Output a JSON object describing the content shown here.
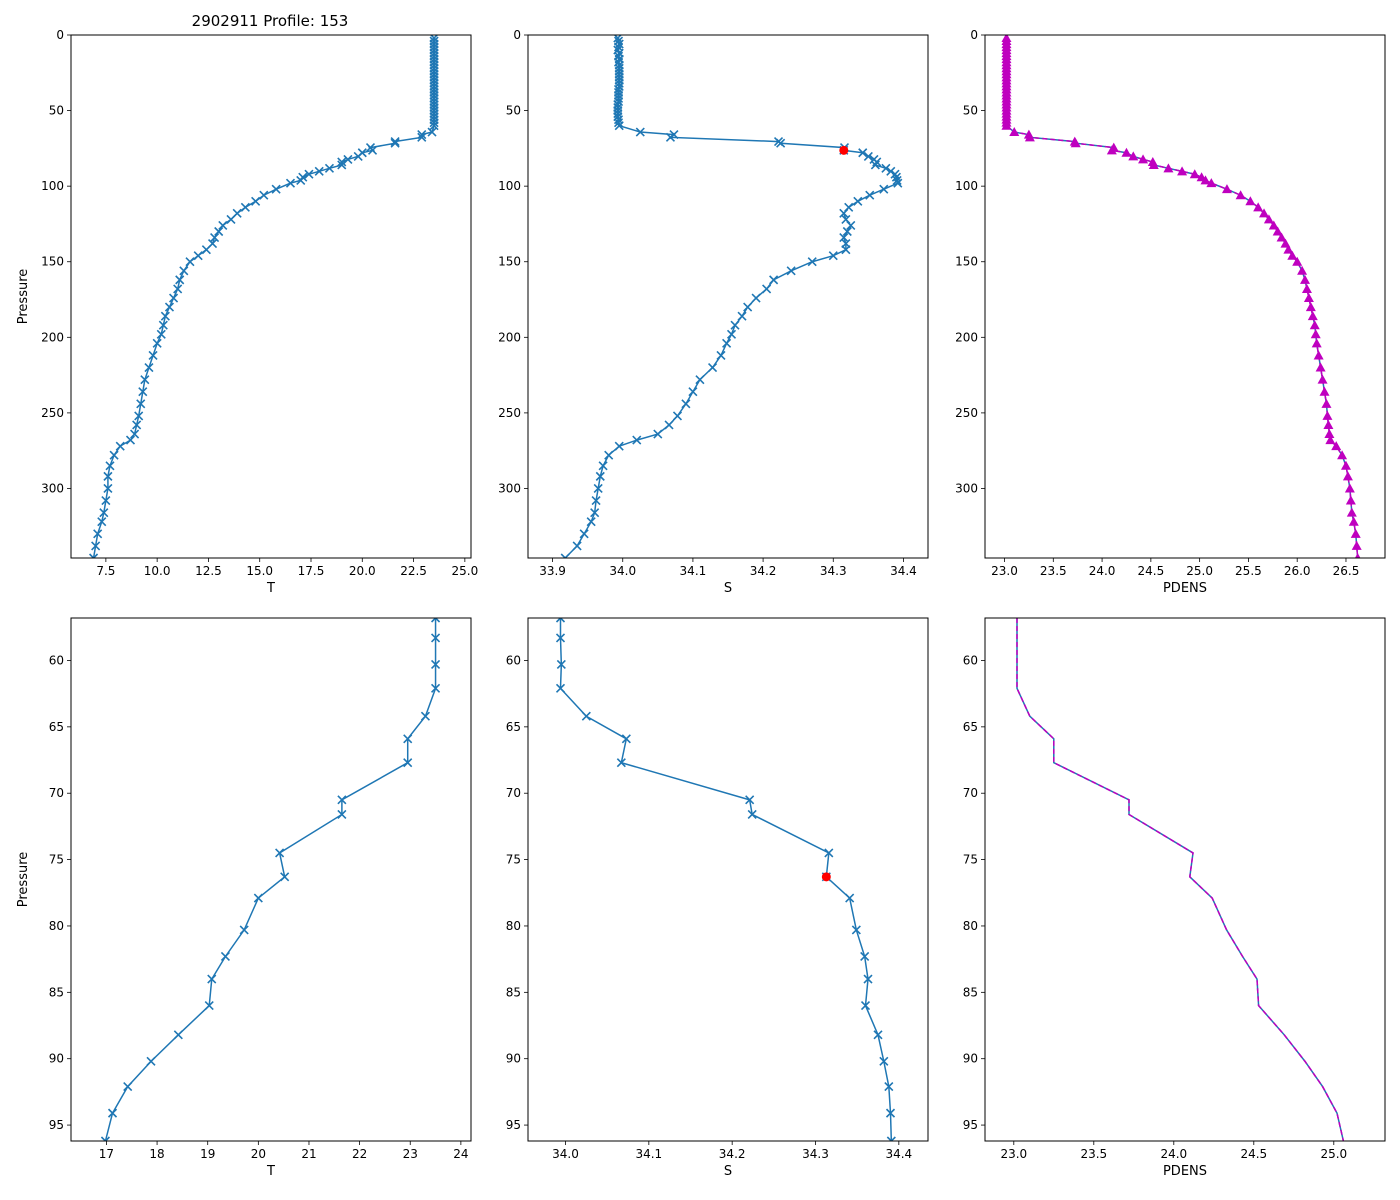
{
  "figure_title": "2902911 Profile: 153",
  "colors": {
    "temp": "#1f77b4",
    "sal": "#1f77b4",
    "dens": "#bf00bf",
    "flag": "#ff0000",
    "axis": "#000000"
  },
  "chart_data": [
    {
      "type": "line",
      "panel": "top-left",
      "title": "2902911 Profile: 153",
      "xlabel": "T",
      "ylabel": "Pressure",
      "xlim": [
        5.8,
        25.3
      ],
      "ylim": [
        346,
        0
      ],
      "xticks": [
        "7.5",
        "10.0",
        "12.5",
        "15.0",
        "17.5",
        "20.0",
        "22.5",
        "25.0"
      ],
      "yticks": [
        "0",
        "50",
        "100",
        "150",
        "200",
        "250",
        "300"
      ],
      "marker": "x",
      "series": [
        {
          "name": "T",
          "x": [
            23.5,
            23.5,
            23.5,
            23.5,
            23.5,
            23.5,
            23.5,
            23.5,
            23.5,
            23.5,
            23.5,
            23.5,
            23.5,
            23.5,
            23.5,
            23.5,
            23.5,
            23.5,
            23.5,
            23.5,
            23.5,
            23.5,
            23.5,
            23.5,
            23.5,
            23.5,
            23.5,
            23.5,
            23.5,
            23.5,
            23.4,
            22.9,
            22.9,
            21.6,
            21.6,
            20.4,
            20.5,
            20.0,
            19.8,
            19.3,
            19.0,
            19.0,
            18.4,
            17.9,
            17.4,
            17.1,
            17.0,
            16.5,
            15.8,
            15.2,
            14.8,
            14.3,
            13.9,
            13.6,
            13.2,
            13.0,
            12.8,
            12.7,
            12.4,
            12.0,
            11.6,
            11.3,
            11.1,
            11.0,
            10.8,
            10.6,
            10.4,
            10.3,
            10.2,
            10.0,
            9.8,
            9.6,
            9.4,
            9.3,
            9.2,
            9.1,
            9.0,
            8.9,
            8.7,
            8.2,
            7.9,
            7.7,
            7.6,
            7.6,
            7.5,
            7.4,
            7.3,
            7.1,
            7.0,
            6.9
          ],
          "y": [
            2,
            4,
            6,
            8,
            10,
            12,
            14,
            16,
            18,
            20,
            22,
            24,
            26,
            28,
            30,
            32,
            34,
            36,
            38,
            40,
            42,
            44,
            46,
            48,
            50,
            52,
            54,
            56,
            58,
            60,
            64.2,
            65.9,
            67.7,
            70.5,
            71.6,
            74.5,
            76.3,
            77.9,
            80.3,
            82.3,
            84.0,
            86.0,
            88.2,
            90.2,
            92.1,
            94.1,
            96.2,
            98,
            102,
            106,
            110,
            114,
            118,
            122,
            126,
            130,
            134,
            138,
            142,
            146,
            150,
            156,
            162,
            168,
            174,
            180,
            186,
            192,
            198,
            204,
            212,
            220,
            228,
            236,
            244,
            252,
            258,
            264,
            268,
            272,
            278,
            285,
            292,
            300,
            308,
            316,
            322,
            330,
            338,
            346
          ]
        }
      ]
    },
    {
      "type": "line",
      "panel": "top-middle",
      "xlabel": "S",
      "xlim": [
        33.865,
        34.435
      ],
      "ylim": [
        346,
        0
      ],
      "xticks": [
        "33.9",
        "34.0",
        "34.1",
        "34.2",
        "34.3",
        "34.4"
      ],
      "yticks": [
        "0",
        "50",
        "100",
        "150",
        "200",
        "250",
        "300"
      ],
      "marker": "x",
      "flagged_point": {
        "x": 34.315,
        "y": 76.3
      },
      "series": [
        {
          "name": "S",
          "x": [
            33.993,
            33.994,
            33.995,
            33.994,
            33.993,
            33.995,
            33.994,
            33.995,
            33.994,
            33.995,
            33.995,
            33.995,
            33.995,
            33.995,
            33.995,
            33.995,
            33.995,
            33.994,
            33.994,
            33.994,
            33.994,
            33.994,
            33.993,
            33.993,
            33.993,
            33.993,
            33.993,
            33.994,
            33.994,
            33.995,
            34.025,
            34.073,
            34.068,
            34.222,
            34.225,
            34.316,
            34.315,
            34.342,
            34.35,
            34.358,
            34.362,
            34.36,
            34.375,
            34.382,
            34.388,
            34.39,
            34.391,
            34.392,
            34.372,
            34.352,
            34.335,
            34.322,
            34.315,
            34.318,
            34.325,
            34.32,
            34.315,
            34.318,
            34.318,
            34.3,
            34.27,
            34.24,
            34.215,
            34.205,
            34.19,
            34.178,
            34.17,
            34.16,
            34.155,
            34.148,
            34.14,
            34.128,
            34.11,
            34.1,
            34.09,
            34.078,
            34.066,
            34.05,
            34.02,
            33.995,
            33.98,
            33.972,
            33.968,
            33.965,
            33.962,
            33.96,
            33.955,
            33.945,
            33.935,
            33.918
          ],
          "y": [
            2,
            4,
            6,
            8,
            10,
            12,
            14,
            16,
            18,
            20,
            22,
            24,
            26,
            28,
            30,
            32,
            34,
            36,
            38,
            40,
            42,
            44,
            46,
            48,
            50,
            52,
            54,
            56,
            58,
            60,
            64.2,
            65.9,
            67.7,
            70.5,
            71.6,
            74.5,
            76.3,
            77.9,
            80.3,
            82.3,
            84.0,
            86.0,
            88.2,
            90.2,
            92.1,
            94.1,
            96.2,
            98,
            102,
            106,
            110,
            114,
            118,
            122,
            126,
            130,
            134,
            138,
            142,
            146,
            150,
            156,
            162,
            168,
            174,
            180,
            186,
            192,
            198,
            204,
            212,
            220,
            228,
            236,
            244,
            252,
            258,
            264,
            268,
            272,
            278,
            285,
            292,
            300,
            308,
            316,
            322,
            330,
            338,
            346
          ]
        }
      ]
    },
    {
      "type": "line",
      "panel": "top-right",
      "xlabel": "PDENS",
      "xlim": [
        22.8,
        26.9
      ],
      "ylim": [
        346,
        0
      ],
      "xticks": [
        "23.0",
        "23.5",
        "24.0",
        "24.5",
        "25.0",
        "25.5",
        "26.0",
        "26.5"
      ],
      "yticks": [
        "0",
        "50",
        "100",
        "150",
        "200",
        "250",
        "300"
      ],
      "marker": "triangle",
      "series": [
        {
          "name": "PDENS",
          "x": [
            23.02,
            23.02,
            23.02,
            23.02,
            23.02,
            23.02,
            23.02,
            23.02,
            23.02,
            23.02,
            23.02,
            23.02,
            23.02,
            23.02,
            23.02,
            23.02,
            23.02,
            23.02,
            23.02,
            23.02,
            23.02,
            23.02,
            23.02,
            23.02,
            23.02,
            23.02,
            23.02,
            23.02,
            23.02,
            23.02,
            23.1,
            23.25,
            23.26,
            23.72,
            23.73,
            24.12,
            24.1,
            24.25,
            24.32,
            24.42,
            24.52,
            24.53,
            24.68,
            24.82,
            24.95,
            25.02,
            25.06,
            25.12,
            25.28,
            25.42,
            25.52,
            25.6,
            25.66,
            25.71,
            25.76,
            25.8,
            25.84,
            25.88,
            25.91,
            25.95,
            26.0,
            26.05,
            26.08,
            26.1,
            26.12,
            26.14,
            26.16,
            26.18,
            26.19,
            26.2,
            26.22,
            26.24,
            26.26,
            26.28,
            26.3,
            26.31,
            26.32,
            26.33,
            26.34,
            26.4,
            26.46,
            26.5,
            26.52,
            26.54,
            26.55,
            26.56,
            26.58,
            26.6,
            26.61,
            26.62
          ],
          "y": [
            2,
            4,
            6,
            8,
            10,
            12,
            14,
            16,
            18,
            20,
            22,
            24,
            26,
            28,
            30,
            32,
            34,
            36,
            38,
            40,
            42,
            44,
            46,
            48,
            50,
            52,
            54,
            56,
            58,
            60,
            64.2,
            65.9,
            67.7,
            70.5,
            71.6,
            74.5,
            76.3,
            77.9,
            80.3,
            82.3,
            84.0,
            86.0,
            88.2,
            90.2,
            92.1,
            94.1,
            96.2,
            98,
            102,
            106,
            110,
            114,
            118,
            122,
            126,
            130,
            134,
            138,
            142,
            146,
            150,
            156,
            162,
            168,
            174,
            180,
            186,
            192,
            198,
            204,
            212,
            220,
            228,
            236,
            244,
            252,
            258,
            264,
            268,
            272,
            278,
            285,
            292,
            300,
            308,
            316,
            322,
            330,
            338,
            346
          ]
        }
      ]
    },
    {
      "type": "line",
      "panel": "bottom-left",
      "xlabel": "T",
      "ylabel": "Pressure",
      "xlim": [
        16.3,
        24.2
      ],
      "ylim": [
        96.2,
        56.8
      ],
      "xticks": [
        "17",
        "18",
        "19",
        "20",
        "21",
        "22",
        "23",
        "24"
      ],
      "yticks": [
        "60",
        "65",
        "70",
        "75",
        "80",
        "85",
        "90",
        "95"
      ],
      "marker": "x",
      "series": [
        {
          "name": "T",
          "x": [
            23.5,
            23.5,
            23.5,
            23.5,
            23.3,
            22.95,
            22.95,
            21.65,
            21.65,
            20.42,
            20.52,
            20.0,
            19.72,
            19.35,
            19.08,
            19.03,
            18.42,
            17.88,
            17.42,
            17.12,
            16.98
          ],
          "y": [
            56.8,
            58.3,
            60.3,
            62.1,
            64.2,
            65.9,
            67.7,
            70.5,
            71.6,
            74.5,
            76.3,
            77.9,
            80.3,
            82.3,
            84.0,
            86.0,
            88.2,
            90.2,
            92.1,
            94.1,
            96.2
          ]
        }
      ]
    },
    {
      "type": "line",
      "panel": "bottom-middle",
      "xlabel": "S",
      "xlim": [
        33.955,
        34.435
      ],
      "ylim": [
        96.2,
        56.8
      ],
      "xticks": [
        "34.0",
        "34.1",
        "34.2",
        "34.3",
        "34.4"
      ],
      "yticks": [
        "60",
        "65",
        "70",
        "75",
        "80",
        "85",
        "90",
        "95"
      ],
      "marker": "x",
      "flagged_point": {
        "x": 34.313,
        "y": 76.3
      },
      "series": [
        {
          "name": "S",
          "x": [
            33.994,
            33.994,
            33.995,
            33.994,
            34.025,
            34.073,
            34.067,
            34.221,
            34.224,
            34.316,
            34.313,
            34.341,
            34.349,
            34.359,
            34.363,
            34.36,
            34.375,
            34.382,
            34.388,
            34.39,
            34.391
          ],
          "y": [
            56.8,
            58.3,
            60.3,
            62.1,
            64.2,
            65.9,
            67.7,
            70.5,
            71.6,
            74.5,
            76.3,
            77.9,
            80.3,
            82.3,
            84.0,
            86.0,
            88.2,
            90.2,
            92.1,
            94.1,
            96.2
          ]
        }
      ]
    },
    {
      "type": "line",
      "panel": "bottom-right",
      "xlabel": "PDENS",
      "xlim": [
        22.82,
        25.32
      ],
      "ylim": [
        96.2,
        56.8
      ],
      "xticks": [
        "23.0",
        "23.5",
        "24.0",
        "24.5",
        "25.0"
      ],
      "yticks": [
        "60",
        "65",
        "70",
        "75",
        "80",
        "85",
        "90",
        "95"
      ],
      "marker": "none",
      "series": [
        {
          "name": "PDENS",
          "x": [
            23.02,
            23.02,
            23.02,
            23.02,
            23.1,
            23.25,
            23.25,
            23.72,
            23.72,
            24.12,
            24.1,
            24.24,
            24.33,
            24.43,
            24.52,
            24.53,
            24.69,
            24.82,
            24.93,
            25.02,
            25.06
          ],
          "y": [
            56.8,
            58.3,
            60.3,
            62.1,
            64.2,
            65.9,
            67.7,
            70.5,
            71.6,
            74.5,
            76.3,
            77.9,
            80.3,
            82.3,
            84.0,
            86.0,
            88.2,
            90.2,
            92.1,
            94.1,
            96.2
          ]
        }
      ]
    }
  ]
}
